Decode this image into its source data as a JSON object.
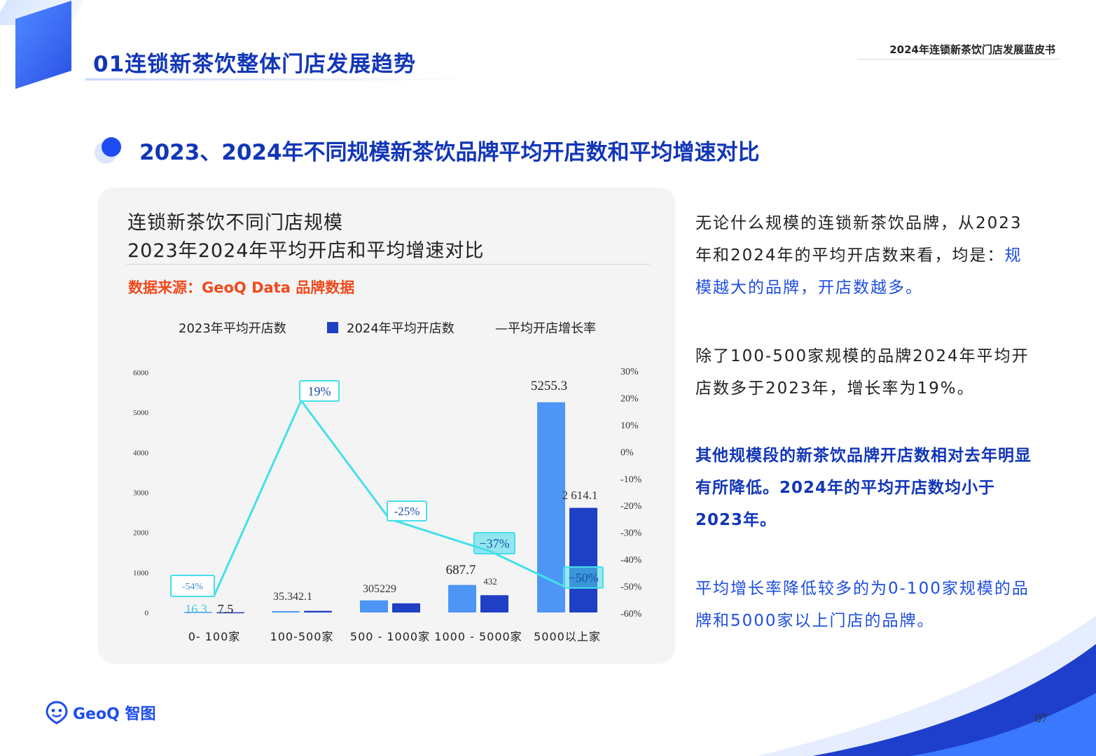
{
  "header": {
    "section_title": "01连锁新茶饮整体门店发展趋势",
    "doc_title": "2024年连锁新茶饮门店发展蓝皮书"
  },
  "subtitle": "2023、2024年不同规模新茶饮品牌平均开店数和平均增速对比",
  "chart_panel": {
    "title_line1": "连锁新茶饮不同门店规模",
    "title_line2": "2023年2024年平均开店和平均增速对比",
    "source": "数据来源：GeoQ Data 品牌数据"
  },
  "chart_data": {
    "type": "bar",
    "combo_with": "line",
    "categories": [
      "0-100家",
      "100-500家",
      "500-1000家",
      "1000-5000家",
      "5000以上家"
    ],
    "category_labels": [
      "0- 100家",
      "100-500家",
      "500 - 1000家",
      "1000 - 5000家",
      "5000以上家"
    ],
    "series": [
      {
        "name": "2023年平均开店数",
        "type": "bar",
        "axis": "left",
        "values": [
          16.3,
          35.3,
          305,
          687.7,
          5255.3
        ],
        "labels": [
          "16.3",
          "35.3",
          "305",
          "687.7",
          "5255.3"
        ],
        "color": "#4d96f5"
      },
      {
        "name": "2024年平均开店数",
        "type": "bar",
        "axis": "left",
        "values": [
          7.5,
          42.1,
          229,
          432,
          2614.1
        ],
        "labels": [
          "7.5",
          "42.1",
          "229",
          "432",
          "2 614.1"
        ],
        "color": "#1f3fc4"
      },
      {
        "name": "平均开店增长率",
        "type": "line",
        "axis": "right",
        "values": [
          -54,
          19,
          -25,
          -37,
          -50
        ],
        "labels": [
          "-54%",
          "19%",
          "-25%",
          "−37%",
          "−50%"
        ],
        "color": "#45e0e8"
      }
    ],
    "legend_labels": [
      "2023年平均开店数",
      "2024年平均开店数",
      "—平均开店增长率"
    ],
    "merged_labels": [
      "35.342.1",
      "305229"
    ],
    "legend_position": "top",
    "y_left": {
      "min": 0,
      "max": 6000,
      "ticks": [
        "0",
        "1000",
        "2000",
        "3000",
        "4000",
        "5000",
        "6000"
      ]
    },
    "y_right": {
      "min": -60,
      "max": 30,
      "ticks": [
        "-60%",
        "-50%",
        "-40%",
        "-30%",
        "-20%",
        "-10%",
        "0%",
        "10%",
        "20%",
        "30%"
      ]
    },
    "grid": false
  },
  "body": {
    "p1_a": "无论什么规模的连锁新茶饮品牌，从2023年和2024年的平均开店数来看，均是：",
    "p1_b": "规模越大的品牌，开店数越多。",
    "p2": "除了100-500家规模的品牌2024年平均开店数多于2023年，增长率为19%。",
    "p3": "其他规模段的新茶饮品牌开店数相对去年明显有所降低。2024年的平均开店数均小于2023年。",
    "p4": "平均增长率降低较多的为0-100家规模的品牌和5000家以上门店的品牌。"
  },
  "footer": {
    "logo_text": "GeoQ 智图",
    "page_number": "07"
  },
  "colors": {
    "primary_blue": "#1236b7",
    "accent_blue": "#1d4cf0",
    "source_orange": "#f04a1c",
    "line_cyan": "#45e0e8",
    "bar_2023": "#4d96f5",
    "bar_2024": "#1f3fc4"
  }
}
